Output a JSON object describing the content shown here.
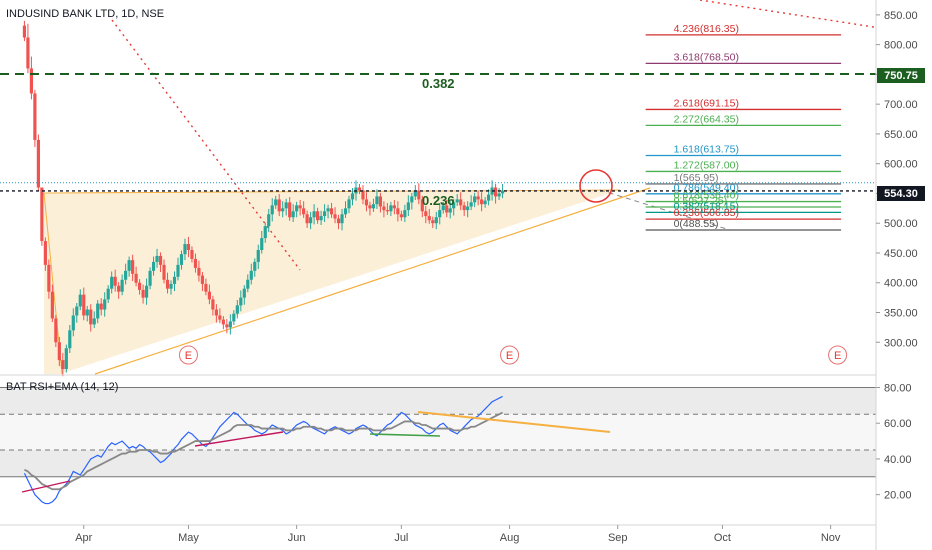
{
  "chart_data": [
    {
      "type": "candlestick",
      "title": "INDUSIND BANK LTD, 1D, NSE",
      "price_axis": {
        "ylim": [
          245,
          875
        ],
        "ticks": [
          "850.00",
          "800.00",
          "750.00",
          "700.00",
          "650.00",
          "600.00",
          "550.00",
          "500.00",
          "450.00",
          "400.00",
          "350.00",
          "300.00"
        ],
        "tick_values": [
          850,
          800,
          750,
          700,
          650,
          600,
          550,
          500,
          450,
          400,
          350,
          300
        ]
      },
      "time_axis": {
        "labels": [
          "Apr",
          "May",
          "Jun",
          "Jul",
          "Aug",
          "Sep",
          "Oct",
          "Nov"
        ],
        "label_days": [
          17,
          47,
          78,
          108,
          139,
          170,
          200,
          231
        ],
        "xlim": [
          -7,
          244
        ]
      },
      "candles_daily": {
        "start_day": 0,
        "colors": {
          "up": "#26a69a",
          "down": "#ef5350"
        },
        "closes": [
          812,
          760,
          718,
          640,
          560,
          470,
          430,
          385,
          340,
          300,
          270,
          255,
          290,
          320,
          345,
          360,
          380,
          345,
          355,
          330,
          340,
          365,
          355,
          372,
          390,
          410,
          395,
          385,
          405,
          420,
          438,
          415,
          400,
          388,
          375,
          395,
          420,
          435,
          445,
          430,
          405,
          390,
          398,
          410,
          430,
          448,
          465,
          455,
          440,
          425,
          412,
          398,
          385,
          372,
          355,
          345,
          338,
          330,
          325,
          335,
          348,
          362,
          375,
          390,
          405,
          420,
          435,
          455,
          475,
          495,
          515,
          530,
          540,
          520,
          525,
          535,
          510,
          520,
          530,
          525,
          515,
          500,
          510,
          520,
          505,
          512,
          520,
          525,
          515,
          508,
          500,
          515,
          525,
          540,
          550,
          560,
          555,
          540,
          530,
          525,
          532,
          545,
          528,
          522,
          520,
          530,
          525,
          515,
          510,
          522,
          535,
          545,
          555,
          540,
          520,
          512,
          505,
          500,
          510,
          522,
          530,
          518,
          525,
          535,
          540,
          530,
          522,
          528,
          535,
          545,
          540,
          532,
          538,
          548,
          560,
          545,
          550,
          554
        ],
        "wick_highs": {
          "0": 840,
          "1": 835,
          "2": 780,
          "5": 555
        }
      },
      "price_levels": {
        "current_price": "554.30",
        "highlight_level": "750.75",
        "dashed_levels": [
          554.3,
          750.75
        ],
        "dotted_level": 568
      },
      "fibonacci_extension": [
        {
          "label": "4.236(816.35)",
          "value": 816.35,
          "color": "#d32f2f"
        },
        {
          "label": "3.618(768.50)",
          "value": 768.5,
          "color": "#8e3a6e"
        },
        {
          "label": "2.618(691.15)",
          "value": 691.15,
          "color": "#d32f2f"
        },
        {
          "label": "2.272(664.35)",
          "value": 664.35,
          "color": "#4caf50"
        },
        {
          "label": "1.618(613.75)",
          "value": 613.75,
          "color": "#2196c9"
        },
        {
          "label": "1.272(587.00)",
          "value": 587.0,
          "color": "#4caf50"
        },
        {
          "label": "1(565.95)",
          "value": 565.95,
          "color": "#777777"
        },
        {
          "label": "0.786(549.40)",
          "value": 549.4,
          "color": "#2196c9"
        },
        {
          "label": "0.618(536.40)",
          "value": 536.4,
          "color": "#4caf50"
        },
        {
          "label": "0.5(527.25)",
          "value": 527.25,
          "color": "#4caf50"
        },
        {
          "label": "0.382(518.15)",
          "value": 518.15,
          "color": "#009688"
        },
        {
          "label": "0.236(506.85)",
          "value": 506.85,
          "color": "#d32f2f"
        },
        {
          "label": "0(488.55)",
          "value": 488.55,
          "color": "#555555"
        }
      ],
      "annotations": [
        "0.382",
        "0.236"
      ],
      "event_markers": {
        "symbol": "E",
        "days": [
          47,
          139,
          233
        ]
      }
    },
    {
      "type": "line",
      "title": "BAT RSI+EMA (14, 12)",
      "ylim": [
        3,
        87
      ],
      "ticks": [
        "80.00",
        "60.00",
        "40.00",
        "20.00"
      ],
      "tick_values": [
        80,
        60,
        40,
        20
      ],
      "bands": [
        30,
        45,
        65,
        80
      ],
      "series": [
        {
          "name": "RSI",
          "color": "#2962ff",
          "values": [
            32,
            28,
            24,
            20,
            18,
            16,
            15,
            15,
            16,
            18,
            22,
            24,
            26,
            29,
            33,
            32,
            31,
            34,
            37,
            40,
            41,
            42,
            41,
            44,
            47,
            49,
            48,
            49,
            50,
            48,
            46,
            47,
            46,
            48,
            47,
            45,
            44,
            42,
            40,
            38,
            39,
            41,
            43,
            46,
            48,
            51,
            53,
            55,
            54,
            52,
            50,
            48,
            47,
            49,
            52,
            55,
            58,
            60,
            62,
            64,
            66,
            65,
            63,
            61,
            59,
            58,
            56,
            55,
            54,
            55,
            57,
            59,
            58,
            57,
            56,
            54,
            55,
            57,
            59,
            60,
            61,
            60,
            58,
            57,
            56,
            55,
            54,
            56,
            57,
            58,
            57,
            56,
            55,
            54,
            55,
            57,
            58,
            59,
            58,
            56,
            54,
            53,
            55,
            57,
            59,
            60,
            62,
            64,
            66,
            65,
            63,
            61,
            59,
            58,
            57,
            55,
            54,
            55,
            57,
            59,
            60,
            58,
            56,
            55,
            54,
            56,
            58,
            60,
            62,
            63,
            64,
            66,
            68,
            70,
            72,
            73,
            74,
            75
          ]
        },
        {
          "name": "EMA",
          "color": "#888888",
          "values": [
            34,
            33,
            31,
            30,
            28,
            26,
            25,
            24,
            23,
            23,
            23,
            24,
            25,
            27,
            28,
            29,
            30,
            31,
            33,
            34,
            35,
            36,
            37,
            38,
            39,
            40,
            41,
            42,
            43,
            43,
            44,
            44,
            44,
            45,
            45,
            45,
            45,
            44,
            44,
            43,
            43,
            43,
            44,
            44,
            45,
            46,
            47,
            48,
            49,
            50,
            50,
            50,
            50,
            50,
            51,
            52,
            53,
            54,
            55,
            56,
            58,
            59,
            59,
            59,
            59,
            59,
            58,
            58,
            57,
            57,
            57,
            57,
            57,
            57,
            57,
            56,
            56,
            56,
            57,
            57,
            58,
            58,
            58,
            58,
            57,
            57,
            56,
            56,
            56,
            57,
            57,
            57,
            56,
            56,
            56,
            56,
            57,
            57,
            57,
            57,
            56,
            56,
            56,
            56,
            57,
            57,
            58,
            59,
            60,
            61,
            61,
            61,
            60,
            60,
            59,
            59,
            58,
            57,
            57,
            57,
            57,
            57,
            57,
            56,
            56,
            56,
            57,
            57,
            58,
            58,
            59,
            60,
            61,
            62,
            63,
            64,
            65,
            66
          ]
        }
      ]
    }
  ]
}
